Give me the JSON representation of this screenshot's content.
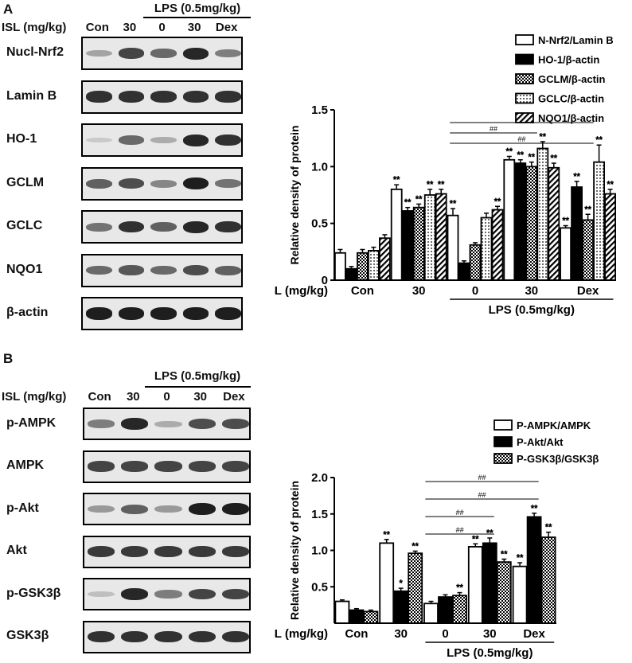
{
  "panel_a": {
    "letter": "A",
    "lps_header": "LPS (0.5mg/kg)",
    "isl_header": "ISL (mg/kg)",
    "lanes": [
      "Con",
      "30",
      "0",
      "30",
      "Dex"
    ],
    "blots": [
      {
        "label": "Nucl-Nrf2",
        "intensity": [
          0.25,
          0.75,
          0.55,
          0.9,
          0.45
        ]
      },
      {
        "label": "Lamin B",
        "intensity": [
          0.85,
          0.85,
          0.85,
          0.85,
          0.85
        ]
      },
      {
        "label": "HO-1",
        "intensity": [
          0.05,
          0.55,
          0.2,
          0.9,
          0.85
        ]
      },
      {
        "label": "GCLM",
        "intensity": [
          0.6,
          0.7,
          0.4,
          0.95,
          0.5
        ]
      },
      {
        "label": "GCLC",
        "intensity": [
          0.5,
          0.85,
          0.6,
          0.9,
          0.85
        ]
      },
      {
        "label": "NQO1",
        "intensity": [
          0.55,
          0.65,
          0.55,
          0.7,
          0.6
        ]
      },
      {
        "label": "β-actin",
        "intensity": [
          0.95,
          0.95,
          0.95,
          0.95,
          0.95
        ]
      }
    ]
  },
  "panel_b": {
    "letter": "B",
    "lps_header": "LPS (0.5mg/kg)",
    "isl_header": "ISL (mg/kg)",
    "lanes": [
      "Con",
      "30",
      "0",
      "30",
      "Dex"
    ],
    "blots": [
      {
        "label": "p-AMPK",
        "intensity": [
          0.45,
          0.9,
          0.2,
          0.7,
          0.7
        ]
      },
      {
        "label": "AMPK",
        "intensity": [
          0.75,
          0.75,
          0.75,
          0.75,
          0.75
        ]
      },
      {
        "label": "p-Akt",
        "intensity": [
          0.3,
          0.6,
          0.3,
          0.95,
          0.95
        ]
      },
      {
        "label": "Akt",
        "intensity": [
          0.8,
          0.8,
          0.8,
          0.8,
          0.8
        ]
      },
      {
        "label": "p-GSK3β",
        "intensity": [
          0.1,
          0.9,
          0.45,
          0.75,
          0.75
        ]
      },
      {
        "label": "GSK3β",
        "intensity": [
          0.85,
          0.85,
          0.85,
          0.85,
          0.85
        ]
      }
    ]
  },
  "chart_data": [
    {
      "type": "bar",
      "ylabel": "Relative density of protein",
      "ylim": [
        0,
        1.5
      ],
      "yticks": [
        "0",
        "0.5",
        "1.0",
        "1.5"
      ],
      "x_prefix": "ISL (mg/kg)",
      "categories": [
        "Con",
        "30",
        "0",
        "30",
        "Dex"
      ],
      "group_label": "LPS (0.5mg/kg)",
      "legend_position": "top-right",
      "series": [
        {
          "name": "N-Nrf2/Lamin B",
          "pattern": "white",
          "values": [
            0.24,
            0.8,
            0.57,
            1.06,
            0.46
          ],
          "errors": [
            0.03,
            0.04,
            0.06,
            0.03,
            0.02
          ],
          "marks": [
            "",
            "**",
            "**",
            "**",
            "**"
          ]
        },
        {
          "name": "HO-1/β-actin",
          "pattern": "black",
          "values": [
            0.1,
            0.61,
            0.15,
            1.03,
            0.82
          ],
          "errors": [
            0.02,
            0.03,
            0.02,
            0.03,
            0.05
          ],
          "marks": [
            "",
            "**",
            "",
            "**",
            "**"
          ]
        },
        {
          "name": "GCLM/β-actin",
          "pattern": "checker",
          "values": [
            0.24,
            0.64,
            0.31,
            1.0,
            0.53
          ],
          "errors": [
            0.03,
            0.03,
            0.02,
            0.04,
            0.05
          ],
          "marks": [
            "",
            "**",
            "",
            "**",
            "**"
          ]
        },
        {
          "name": "GCLC/β-actin",
          "pattern": "dots",
          "values": [
            0.26,
            0.75,
            0.55,
            1.16,
            1.04
          ],
          "errors": [
            0.03,
            0.05,
            0.04,
            0.06,
            0.15
          ],
          "marks": [
            "",
            "**",
            "",
            "**",
            "**"
          ]
        },
        {
          "name": "NQO1/β-actin",
          "pattern": "hatch",
          "values": [
            0.37,
            0.76,
            0.62,
            0.99,
            0.76
          ],
          "errors": [
            0.03,
            0.04,
            0.03,
            0.04,
            0.04
          ],
          "marks": [
            "",
            "**",
            "**",
            "**",
            "**"
          ]
        }
      ],
      "comparisons": [
        {
          "label": "##",
          "from": 2,
          "to": 4
        },
        {
          "label": "##",
          "from": 2,
          "to": 3
        },
        {
          "label": "##",
          "from": 2,
          "to": 4
        }
      ]
    },
    {
      "type": "bar",
      "ylabel": "Relative density of protein",
      "ylim": [
        0,
        2.0
      ],
      "yticks": [
        "0.5",
        "1.0",
        "1.5",
        "2.0"
      ],
      "x_prefix": "ISL (mg/kg)",
      "categories": [
        "Con",
        "30",
        "0",
        "30",
        "Dex"
      ],
      "group_label": "LPS (0.5mg/kg)",
      "legend_position": "top-right",
      "series": [
        {
          "name": "P-AMPK/AMPK",
          "pattern": "white",
          "values": [
            0.3,
            1.1,
            0.27,
            1.05,
            0.78
          ],
          "errors": [
            0.02,
            0.05,
            0.03,
            0.04,
            0.05
          ],
          "marks": [
            "",
            "**",
            "",
            "**",
            "**"
          ]
        },
        {
          "name": "P-Akt/Akt",
          "pattern": "black",
          "values": [
            0.18,
            0.44,
            0.36,
            1.1,
            1.46
          ],
          "errors": [
            0.02,
            0.04,
            0.03,
            0.07,
            0.05
          ],
          "marks": [
            "",
            "*",
            "",
            "**",
            "**"
          ]
        },
        {
          "name": "P-GSK3β/GSK3β",
          "pattern": "checker",
          "values": [
            0.16,
            0.96,
            0.38,
            0.84,
            1.18
          ],
          "errors": [
            0.02,
            0.03,
            0.04,
            0.04,
            0.07
          ],
          "marks": [
            "",
            "**",
            "**",
            "**",
            "**"
          ]
        }
      ],
      "comparisons": [
        {
          "label": "##",
          "from": 2,
          "to": 4
        },
        {
          "label": "##",
          "from": 2,
          "to": 4
        },
        {
          "label": "##",
          "from": 2,
          "to": 3
        },
        {
          "label": "##",
          "from": 2,
          "to": 3
        }
      ]
    }
  ]
}
